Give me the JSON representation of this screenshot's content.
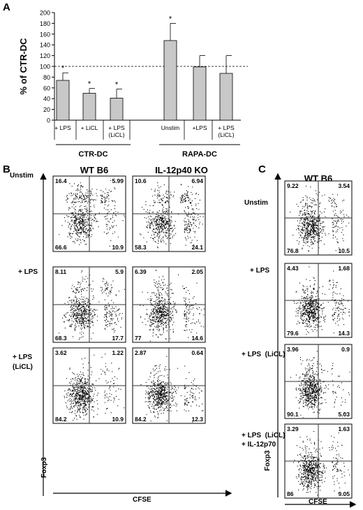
{
  "panels": {
    "a": {
      "letter": "A"
    },
    "b": {
      "letter": "B",
      "columns": [
        "WT B6",
        "IL-12p40 KO"
      ],
      "rows": [
        "Unstim",
        "+ LPS",
        "+ LPS\n(LiCL)"
      ],
      "y_label": "Foxp3",
      "x_label": "CFSE",
      "plots": [
        [
          {
            "ul": "16.4",
            "ur": "5.99",
            "ll": "66.6",
            "lr": "10.9"
          },
          {
            "ul": "10.6",
            "ur": "6.94",
            "ll": "58.3",
            "lr": "24.1"
          }
        ],
        [
          {
            "ul": "8.11",
            "ur": "5.9",
            "ll": "68.3",
            "lr": "17.7"
          },
          {
            "ul": "6.39",
            "ur": "2.05",
            "ll": "77",
            "lr": "14.6"
          }
        ],
        [
          {
            "ul": "3.62",
            "ur": "1.22",
            "ll": "84.2",
            "lr": "10.9"
          },
          {
            "ul": "2.87",
            "ur": "0.64",
            "ll": "84.2",
            "lr": "12.3"
          }
        ]
      ]
    },
    "c": {
      "letter": "C",
      "column": "WT B6",
      "rows": [
        "Unstim",
        "+ LPS",
        "+ LPS  (LiCL)",
        "+ LPS  (LiCL)\n+ IL-12p70"
      ],
      "y_label": "Foxp3",
      "x_label": "CFSE",
      "plots": [
        {
          "ul": "9.22",
          "ur": "3.54",
          "ll": "76.8",
          "lr": "10.5"
        },
        {
          "ul": "4.43",
          "ur": "1.68",
          "ll": "79.6",
          "lr": "14.3"
        },
        {
          "ul": "3.96",
          "ur": "0.9",
          "ll": "90.1",
          "lr": "5.03"
        },
        {
          "ul": "3.29",
          "ur": "1.63",
          "ll": "86",
          "lr": "9.05"
        }
      ]
    }
  },
  "chart_data": {
    "type": "bar",
    "ylabel": "% of CTR-DC",
    "ylim": [
      0,
      200
    ],
    "yticks": [
      0,
      20,
      40,
      60,
      80,
      100,
      120,
      140,
      160,
      180,
      200
    ],
    "reference_line": 100,
    "categories": [
      "+ LPS",
      "+ LiCL",
      "+ LPS\n(LiCL)",
      "Unstim",
      "+LPS",
      "+ LPS\n(LiCL)"
    ],
    "values": [
      74,
      50,
      41,
      148,
      99,
      87
    ],
    "errors": [
      14,
      9,
      17,
      32,
      21,
      33
    ],
    "significant": [
      true,
      true,
      true,
      true,
      false,
      false
    ],
    "significance_marker": "*",
    "groups": [
      {
        "label": "CTR-DC",
        "from": 0,
        "to": 2
      },
      {
        "label": "RAPA-DC",
        "from": 3,
        "to": 5
      }
    ],
    "bar_color": "#c8c8c8"
  }
}
